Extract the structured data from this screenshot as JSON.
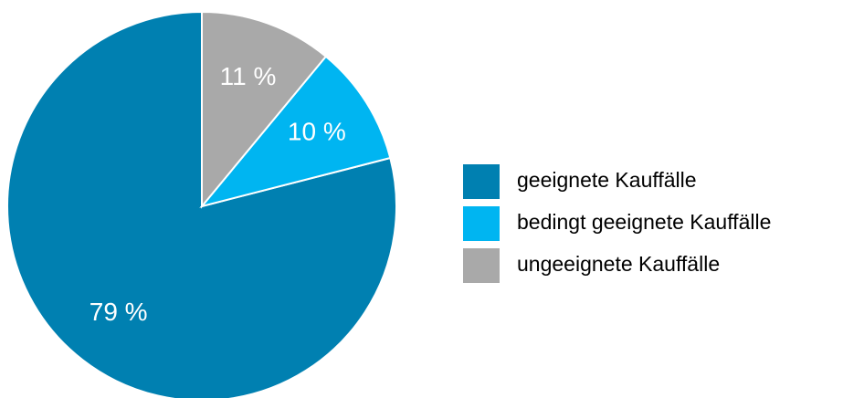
{
  "chart_data": {
    "type": "pie",
    "categories": [
      "geeignete Kauffälle",
      "bedingt geeignete Kauffälle",
      "ungeeignete Kauffälle"
    ],
    "values": [
      79,
      10,
      11
    ],
    "value_labels": [
      "79 %",
      "10 %",
      "11 %"
    ],
    "colors": [
      "#0080b1",
      "#00b5f1",
      "#a9a9a9"
    ],
    "legend": "right"
  }
}
